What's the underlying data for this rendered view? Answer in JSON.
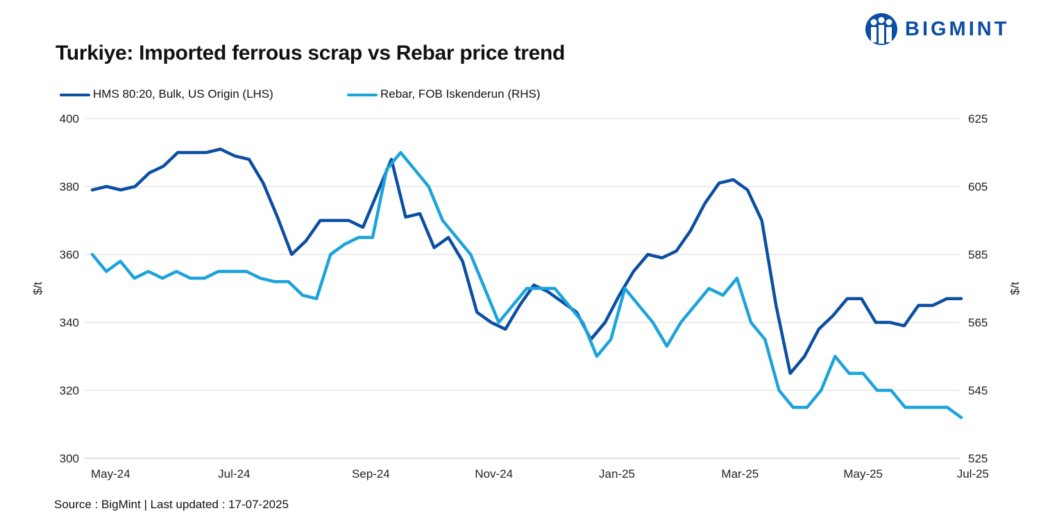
{
  "brand": {
    "name": "BIGMINT",
    "color": "#0b4ea2"
  },
  "source_text": "Source : BigMint | Last updated : 17-07-2025",
  "chart_data": {
    "type": "line",
    "title": "Turkiye: Imported ferrous scrap vs Rebar price trend",
    "legend_position": "top-left",
    "grid": true,
    "x_tick_labels": [
      "May-24",
      "Jul-24",
      "Sep-24",
      "Nov-24",
      "Jan-25",
      "Mar-25",
      "May-25",
      "Jul-25"
    ],
    "x_tick_index": [
      0,
      9,
      19,
      28,
      37,
      46,
      55,
      64
    ],
    "y_left": {
      "label": "$/t",
      "range": [
        300,
        400
      ],
      "ticks": [
        "300",
        "320",
        "340",
        "360",
        "380",
        "400"
      ]
    },
    "y_right": {
      "label": "$/t",
      "range": [
        525,
        625
      ],
      "ticks": [
        "525",
        "545",
        "565",
        "585",
        "605",
        "625"
      ]
    },
    "series": [
      {
        "name": "HMS 80:20, Bulk, US Origin (LHS)",
        "axis": "left",
        "color": "#0b4ea2",
        "values": [
          379,
          380,
          379,
          380,
          384,
          386,
          390,
          390,
          390,
          391,
          389,
          388,
          381,
          371,
          360,
          364,
          370,
          370,
          370,
          368,
          378,
          388,
          371,
          372,
          362,
          365,
          358,
          343,
          340,
          338,
          345,
          351,
          349,
          346,
          343,
          335,
          340,
          348,
          355,
          360,
          359,
          361,
          367,
          375,
          381,
          382,
          379,
          370,
          345,
          325,
          330,
          338,
          342,
          347,
          347,
          340,
          340,
          339,
          345,
          345,
          347,
          347
        ]
      },
      {
        "name": "Rebar, FOB Iskenderun (RHS)",
        "axis": "right",
        "color": "#1ba3dc",
        "values": [
          585,
          580,
          583,
          578,
          580,
          578,
          580,
          578,
          578,
          580,
          580,
          580,
          578,
          577,
          577,
          573,
          572,
          585,
          588,
          590,
          590,
          610,
          615,
          610,
          605,
          595,
          590,
          585,
          575,
          565,
          570,
          575,
          575,
          575,
          570,
          565,
          555,
          560,
          575,
          570,
          565,
          558,
          565,
          570,
          575,
          573,
          578,
          565,
          560,
          545,
          540,
          540,
          545,
          555,
          550,
          550,
          545,
          545,
          540,
          540,
          540,
          540,
          537
        ]
      }
    ]
  }
}
